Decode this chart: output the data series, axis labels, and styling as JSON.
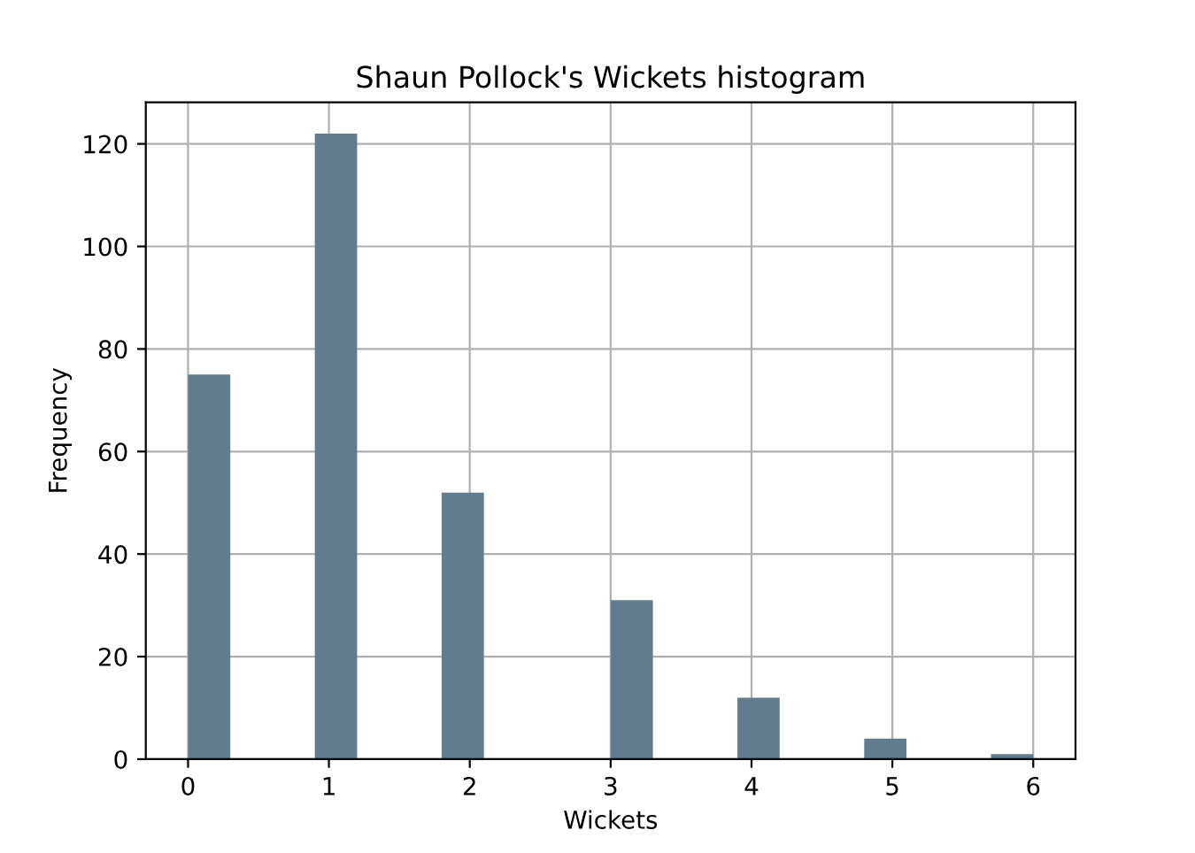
{
  "chart_data": {
    "type": "histogram",
    "title": "Shaun Pollock's Wickets histogram",
    "xlabel": "Wickets",
    "ylabel": "Frequency",
    "bins": [
      0,
      0.3,
      0.6,
      0.9,
      1.2,
      1.5,
      1.8,
      2.1,
      2.4,
      2.7,
      3.0,
      3.3,
      3.6,
      3.9,
      4.2,
      4.5,
      4.8,
      5.1,
      5.4,
      5.7,
      6.0
    ],
    "values": [
      75,
      0,
      0,
      122,
      0,
      0,
      52,
      0,
      0,
      0,
      31,
      0,
      0,
      12,
      0,
      0,
      4,
      0,
      0,
      1
    ],
    "color": "#607c8e",
    "xlim": [
      -0.3,
      6.3
    ],
    "ylim": [
      0,
      128.1
    ],
    "xticks": [
      0,
      1,
      2,
      3,
      4,
      5,
      6
    ],
    "yticks": [
      0,
      20,
      40,
      60,
      80,
      100,
      120
    ],
    "grid": true
  }
}
